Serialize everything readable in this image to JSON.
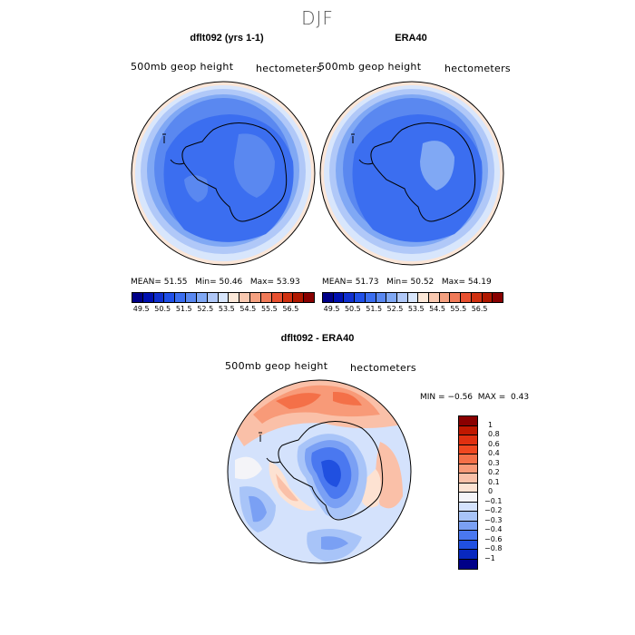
{
  "title": "DJF",
  "panels": [
    {
      "title": "dflt092 (yrs 1-1)",
      "left_label": "500mb geop height",
      "right_label": "hectometers",
      "stats": {
        "mean_label": "MEAN=",
        "mean": "51.55",
        "min_label": "Min=",
        "min": "50.46",
        "max_label": "Max=",
        "max": "53.93"
      }
    },
    {
      "title": "ERA40",
      "left_label": "500mb geop height",
      "right_label": "hectometers",
      "stats": {
        "mean_label": "MEAN=",
        "mean": "51.73",
        "min_label": "Min=",
        "min": "50.52",
        "max_label": "Max=",
        "max": "54.19"
      }
    }
  ],
  "colorbar_top": {
    "ticks": [
      "49.5",
      "50.5",
      "51.5",
      "52.5",
      "53.5",
      "54.5",
      "55.5",
      "56.5"
    ],
    "colors": [
      "#000088",
      "#0010b0",
      "#1030d0",
      "#2050e8",
      "#3b6ef0",
      "#5a88f0",
      "#80a8f4",
      "#b0c8f8",
      "#d8e6fc",
      "#fce8d8",
      "#f8c8b0",
      "#f4a080",
      "#f07a58",
      "#e85030",
      "#d03010",
      "#b01800",
      "#880000"
    ]
  },
  "diff_panel": {
    "title": "dflt092 - ERA40",
    "left_label": "500mb geop height",
    "right_label": "hectometers",
    "min_label": "MIN =",
    "min": "−0.56",
    "max_label": "MAX =",
    "max": "0.43"
  },
  "colorbar_diff": {
    "ticks": [
      "1",
      "0.8",
      "0.6",
      "0.4",
      "0.3",
      "0.2",
      "0.1",
      "0",
      "−0.1",
      "−0.2",
      "−0.3",
      "−0.4",
      "−0.6",
      "−0.8",
      "−1"
    ],
    "colors": [
      "#8a0000",
      "#c01800",
      "#e03010",
      "#f04820",
      "#f47048",
      "#f89a78",
      "#fac0a8",
      "#fde2d2",
      "#f4f4f8",
      "#d4e2fc",
      "#a8c4f8",
      "#7aa0f4",
      "#4a78f0",
      "#2050e0",
      "#0828c0",
      "#000088"
    ]
  }
}
